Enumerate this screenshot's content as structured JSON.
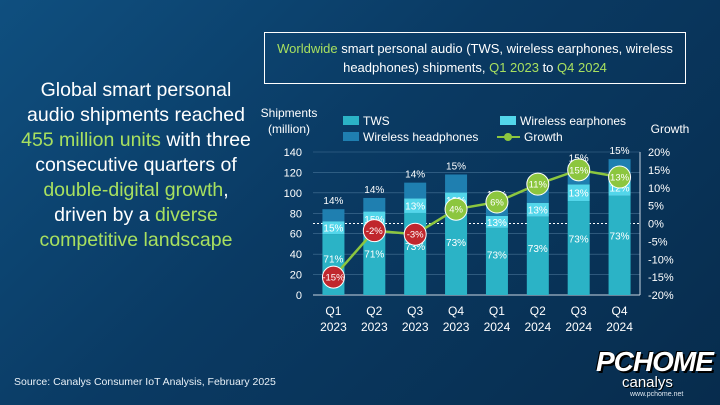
{
  "headline": {
    "part1": "Global smart personal audio shipments reached ",
    "highlight1": "455 million units",
    "part2": " with three consecutive quarters of ",
    "highlight2": "double-digital growth",
    "part3": ", driven by a ",
    "highlight3": "diverse competitive landscape"
  },
  "title": {
    "hl1": "Worldwide",
    "text1": " smart personal audio (TWS, wireless earphones, wireless headphones) shipments, ",
    "hl2": "Q1 2023",
    "text2": " to ",
    "hl3": "Q4 2024"
  },
  "source": "Source: Canalys Consumer IoT Analysis, February 2025",
  "brand": {
    "main": "PCHOME",
    "sub": "canalys",
    "url": "www.pchome.net"
  },
  "chart_data": {
    "type": "bar",
    "categories": [
      {
        "quarter": "Q1",
        "year": "2023"
      },
      {
        "quarter": "Q2",
        "year": "2023"
      },
      {
        "quarter": "Q3",
        "year": "2023"
      },
      {
        "quarter": "Q4",
        "year": "2023"
      },
      {
        "quarter": "Q1",
        "year": "2024"
      },
      {
        "quarter": "Q2",
        "year": "2024"
      },
      {
        "quarter": "Q3",
        "year": "2024"
      },
      {
        "quarter": "Q4",
        "year": "2024"
      }
    ],
    "ylabel_left": [
      "Shipments",
      "(million)"
    ],
    "ylabel_right": "Growth",
    "ylim_left": [
      0,
      140
    ],
    "yticks_left": [
      0,
      20,
      40,
      60,
      80,
      100,
      120,
      140
    ],
    "ylim_right": [
      -20,
      20
    ],
    "yticks_right": [
      "-20%",
      "-15%",
      "-10%",
      "-5%",
      "0%",
      "5%",
      "10%",
      "15%",
      "20%"
    ],
    "yticks_right_values": [
      -20,
      -15,
      -10,
      -5,
      0,
      5,
      10,
      15,
      20
    ],
    "totals": [
      84,
      95,
      110,
      118,
      90,
      105,
      126,
      133
    ],
    "series": [
      {
        "name": "TWS",
        "color": "#2bb3c6",
        "shares": [
          "71%",
          "71%",
          "73%",
          "73%",
          "73%",
          "73%",
          "73%",
          "73%"
        ],
        "share_values": [
          71,
          71,
          73,
          73,
          73,
          73,
          73,
          73
        ]
      },
      {
        "name": "Wireless earphones",
        "color": "#53d6ea",
        "shares": [
          "15%",
          "15%",
          "13%",
          "12%",
          "13%",
          "13%",
          "13%",
          "12%"
        ],
        "share_values": [
          15,
          15,
          13,
          12,
          13,
          13,
          13,
          12
        ]
      },
      {
        "name": "Wireless headphones",
        "color": "#1f7fb0",
        "shares": [
          "14%",
          "14%",
          "14%",
          "15%",
          "15%",
          "14%",
          "15%",
          "15%"
        ],
        "share_values": [
          14,
          14,
          14,
          15,
          15,
          14,
          15,
          15
        ]
      }
    ],
    "growth": {
      "name": "Growth",
      "values": [
        -15,
        -2,
        -3,
        4,
        6,
        11,
        15,
        13
      ],
      "labels": [
        "-15%",
        "-2%",
        "-3%",
        "4%",
        "6%",
        "11%",
        "15%",
        "13%"
      ],
      "positive_color": "#8cc63f",
      "negative_color": "#c0272d"
    },
    "legend": [
      "TWS",
      "Wireless earphones",
      "Wireless headphones",
      "Growth"
    ]
  }
}
